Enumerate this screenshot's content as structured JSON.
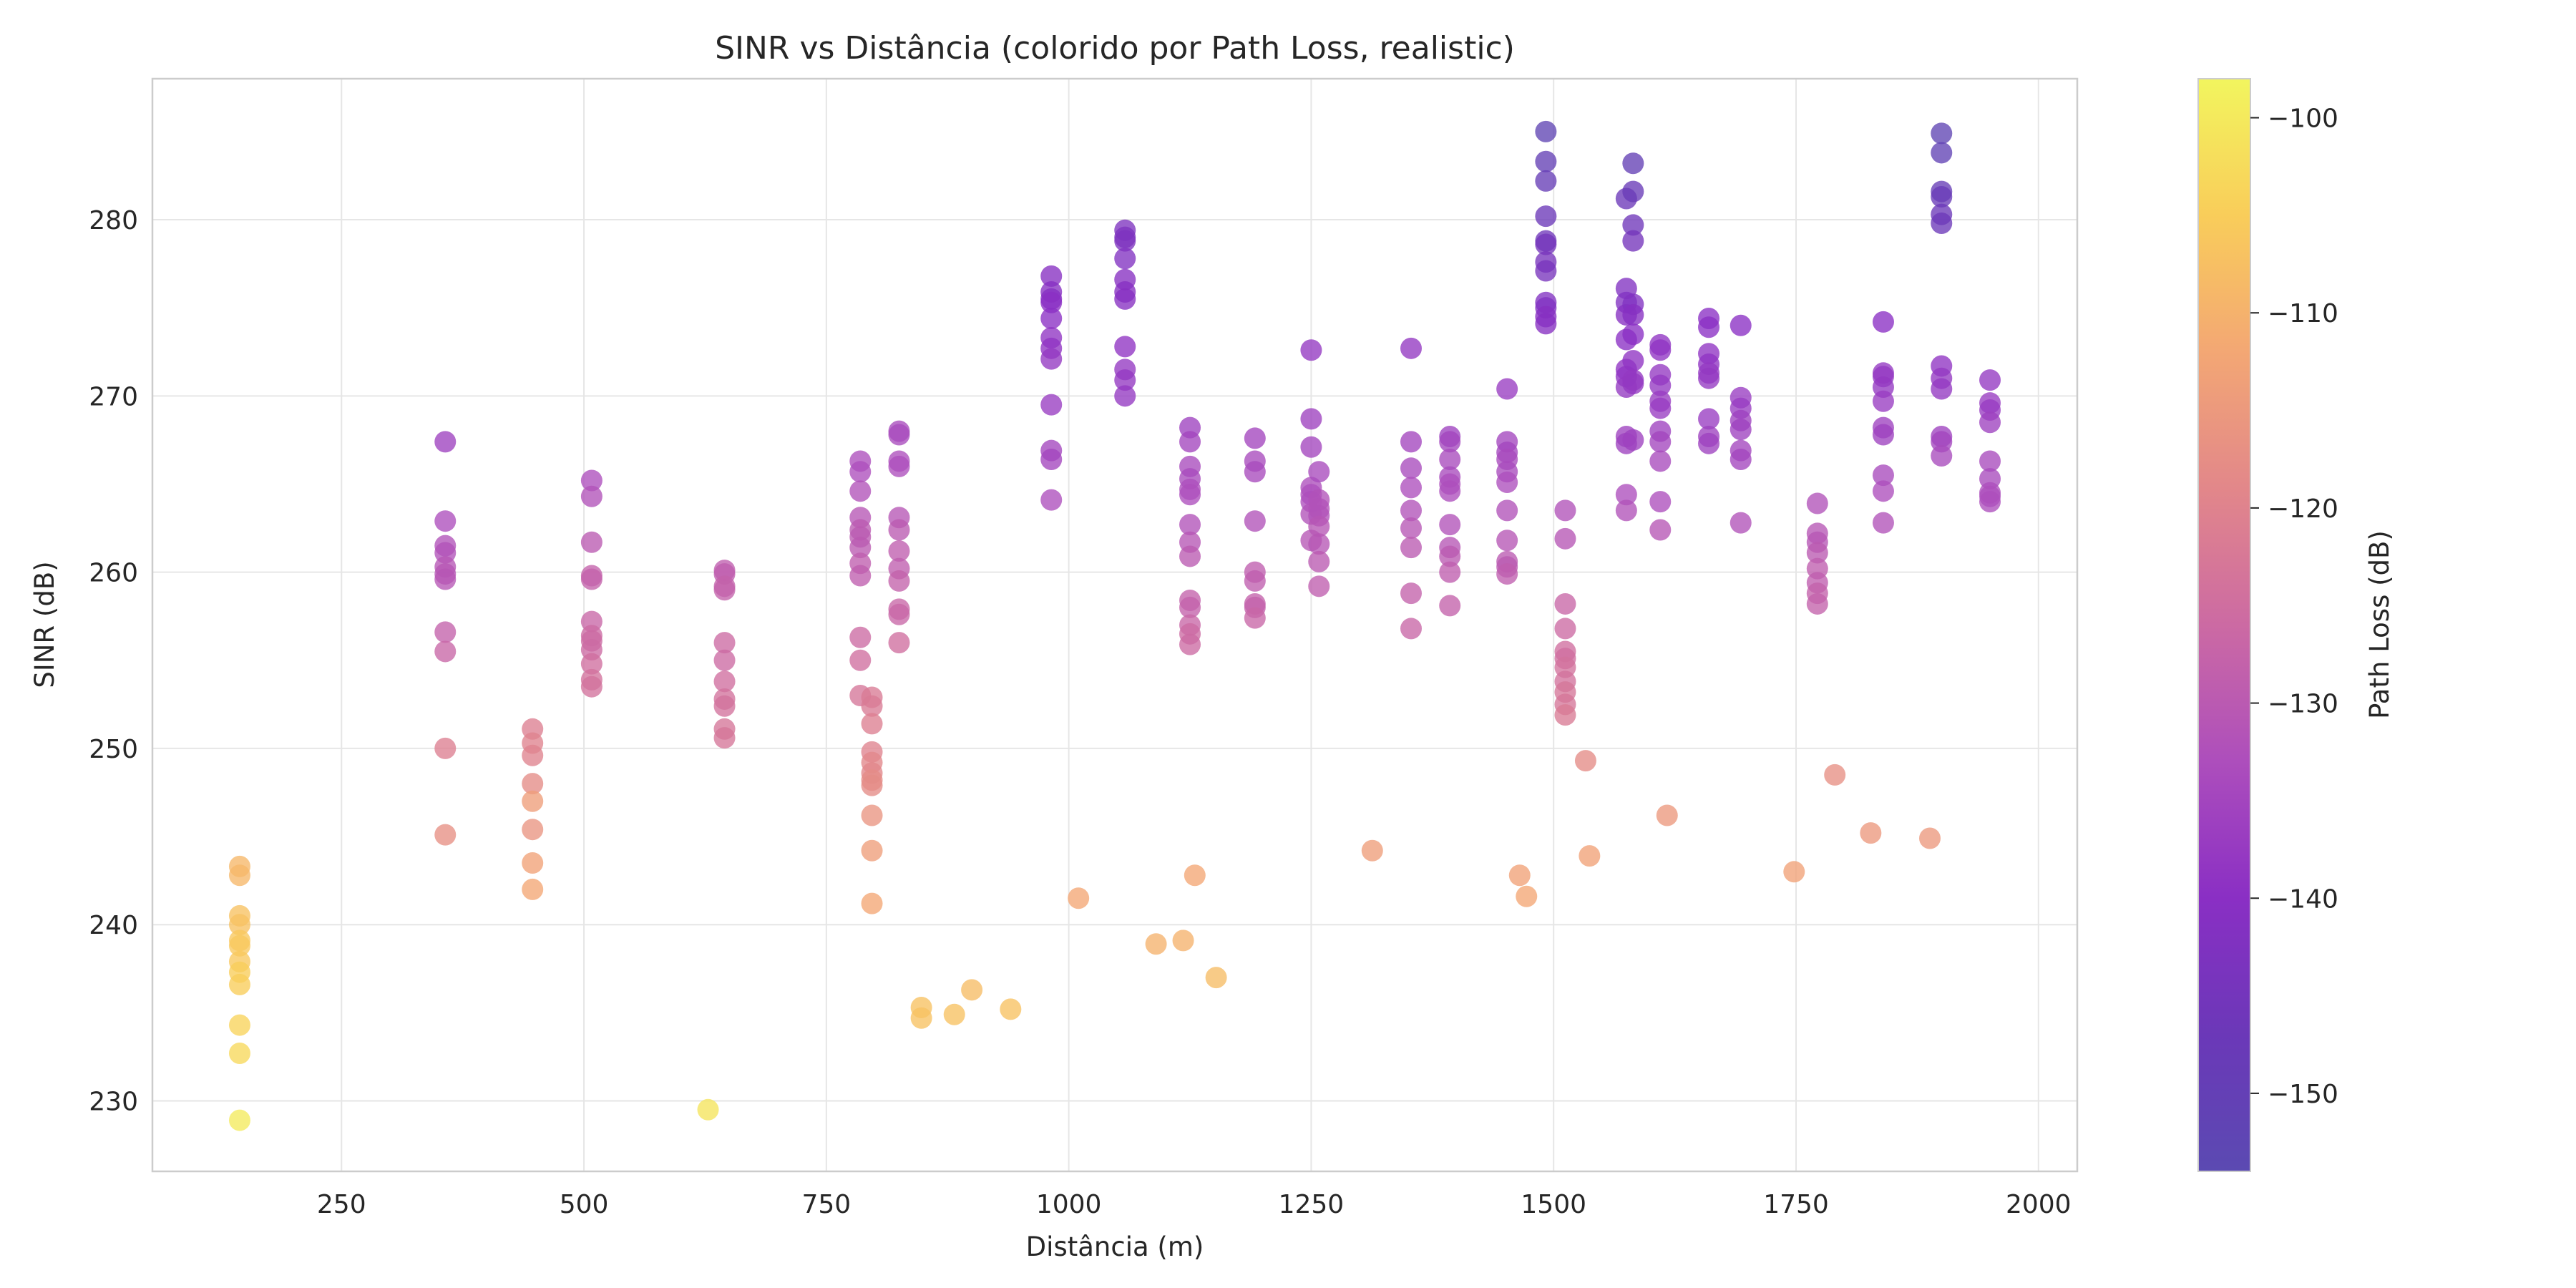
{
  "chart_data": {
    "type": "scatter",
    "title": "SINR vs Distância (colorido por Path Loss, realistic)",
    "xlabel": "Distância (m)",
    "ylabel": "SINR (dB)",
    "xlim": [
      55,
      2040
    ],
    "ylim": [
      226,
      288
    ],
    "xticks": [
      250,
      500,
      750,
      1000,
      1250,
      1500,
      1750,
      2000
    ],
    "yticks": [
      230,
      240,
      250,
      260,
      270,
      280
    ],
    "grid": true,
    "colormap": "plasma",
    "colorbar": {
      "label": "Path Loss (dB)",
      "range": [
        -154,
        -98
      ],
      "ticks": [
        -100,
        -110,
        -120,
        -130,
        -140,
        -150
      ]
    },
    "points": [
      [
        145,
        243.3,
        -109
      ],
      [
        145,
        242.8,
        -109
      ],
      [
        145,
        240.5,
        -107
      ],
      [
        145,
        240.0,
        -107
      ],
      [
        145,
        239.1,
        -106
      ],
      [
        145,
        238.8,
        -106
      ],
      [
        145,
        237.9,
        -106
      ],
      [
        145,
        237.3,
        -105
      ],
      [
        145,
        236.6,
        -105
      ],
      [
        145,
        234.3,
        -104
      ],
      [
        145,
        232.7,
        -103
      ],
      [
        145,
        228.9,
        -100
      ],
      [
        357,
        267.4,
        -136
      ],
      [
        357,
        262.9,
        -133
      ],
      [
        357,
        261.5,
        -132
      ],
      [
        357,
        261.1,
        -132
      ],
      [
        357,
        260.3,
        -131
      ],
      [
        357,
        259.9,
        -131
      ],
      [
        357,
        259.6,
        -131
      ],
      [
        357,
        256.6,
        -128
      ],
      [
        357,
        255.5,
        -127
      ],
      [
        357,
        250.0,
        -121
      ],
      [
        357,
        245.1,
        -117
      ],
      [
        447,
        251.1,
        -121
      ],
      [
        447,
        250.3,
        -120
      ],
      [
        447,
        249.6,
        -120
      ],
      [
        447,
        248.0,
        -118
      ],
      [
        447,
        247.0,
        -114
      ],
      [
        447,
        245.4,
        -116
      ],
      [
        447,
        243.5,
        -113
      ],
      [
        447,
        242.0,
        -112
      ],
      [
        508,
        265.2,
        -133
      ],
      [
        508,
        264.3,
        -132
      ],
      [
        508,
        261.7,
        -130
      ],
      [
        508,
        259.8,
        -128
      ],
      [
        508,
        259.6,
        -128
      ],
      [
        508,
        257.2,
        -127
      ],
      [
        508,
        256.4,
        -126
      ],
      [
        508,
        256.1,
        -126
      ],
      [
        508,
        255.6,
        -126
      ],
      [
        508,
        254.8,
        -125
      ],
      [
        508,
        253.9,
        -124
      ],
      [
        508,
        253.5,
        -124
      ],
      [
        628,
        229.5,
        -101
      ],
      [
        645,
        260.1,
        -129
      ],
      [
        645,
        259.9,
        -129
      ],
      [
        645,
        259.2,
        -128
      ],
      [
        645,
        259.0,
        -128
      ],
      [
        645,
        256.0,
        -126
      ],
      [
        645,
        255.0,
        -126
      ],
      [
        645,
        253.8,
        -125
      ],
      [
        645,
        252.8,
        -124
      ],
      [
        645,
        252.4,
        -124
      ],
      [
        645,
        251.1,
        -123
      ],
      [
        645,
        250.6,
        -123
      ],
      [
        785,
        266.3,
        -133
      ],
      [
        785,
        265.7,
        -133
      ],
      [
        785,
        264.6,
        -132
      ],
      [
        785,
        263.1,
        -131
      ],
      [
        785,
        262.4,
        -130
      ],
      [
        785,
        262.0,
        -130
      ],
      [
        785,
        261.4,
        -130
      ],
      [
        785,
        260.5,
        -129
      ],
      [
        785,
        259.8,
        -129
      ],
      [
        785,
        256.3,
        -126
      ],
      [
        785,
        255.0,
        -125
      ],
      [
        785,
        253.0,
        -123
      ],
      [
        797,
        252.9,
        -122
      ],
      [
        797,
        252.4,
        -122
      ],
      [
        797,
        251.4,
        -121
      ],
      [
        797,
        249.8,
        -120
      ],
      [
        797,
        249.2,
        -119
      ],
      [
        797,
        248.6,
        -119
      ],
      [
        797,
        248.2,
        -118
      ],
      [
        797,
        247.9,
        -118
      ],
      [
        797,
        246.2,
        -116
      ],
      [
        797,
        244.2,
        -114
      ],
      [
        797,
        241.2,
        -112
      ],
      [
        825,
        268.0,
        -134
      ],
      [
        825,
        267.8,
        -134
      ],
      [
        825,
        266.3,
        -133
      ],
      [
        825,
        266.0,
        -133
      ],
      [
        825,
        263.1,
        -131
      ],
      [
        825,
        262.4,
        -130
      ],
      [
        825,
        261.2,
        -129
      ],
      [
        825,
        260.2,
        -129
      ],
      [
        825,
        259.5,
        -128
      ],
      [
        825,
        257.9,
        -127
      ],
      [
        825,
        257.6,
        -127
      ],
      [
        825,
        256.0,
        -125
      ],
      [
        848,
        235.3,
        -107
      ],
      [
        848,
        234.7,
        -107
      ],
      [
        882,
        234.9,
        -107
      ],
      [
        900,
        236.3,
        -108
      ],
      [
        940,
        235.2,
        -107
      ],
      [
        982,
        276.8,
        -141
      ],
      [
        982,
        275.9,
        -141
      ],
      [
        982,
        275.5,
        -141
      ],
      [
        982,
        275.3,
        -140
      ],
      [
        982,
        274.4,
        -140
      ],
      [
        982,
        273.3,
        -139
      ],
      [
        982,
        272.7,
        -139
      ],
      [
        982,
        272.1,
        -138
      ],
      [
        982,
        269.5,
        -137
      ],
      [
        982,
        266.9,
        -135
      ],
      [
        982,
        266.4,
        -135
      ],
      [
        982,
        264.1,
        -133
      ],
      [
        1010,
        241.5,
        -112
      ],
      [
        1058,
        279.4,
        -143
      ],
      [
        1058,
        279.0,
        -143
      ],
      [
        1058,
        278.8,
        -143
      ],
      [
        1058,
        277.8,
        -142
      ],
      [
        1058,
        276.6,
        -141
      ],
      [
        1058,
        275.9,
        -141
      ],
      [
        1058,
        275.5,
        -141
      ],
      [
        1058,
        272.8,
        -139
      ],
      [
        1058,
        271.5,
        -138
      ],
      [
        1058,
        270.9,
        -138
      ],
      [
        1058,
        270.0,
        -138
      ],
      [
        1090,
        238.9,
        -110
      ],
      [
        1118,
        239.1,
        -110
      ],
      [
        1130,
        242.8,
        -112
      ],
      [
        1152,
        237.0,
        -108
      ],
      [
        1125,
        268.2,
        -136
      ],
      [
        1125,
        267.4,
        -135
      ],
      [
        1125,
        266.0,
        -134
      ],
      [
        1125,
        265.3,
        -134
      ],
      [
        1125,
        264.7,
        -133
      ],
      [
        1125,
        264.4,
        -133
      ],
      [
        1125,
        262.7,
        -132
      ],
      [
        1125,
        261.7,
        -131
      ],
      [
        1125,
        260.9,
        -130
      ],
      [
        1125,
        258.4,
        -128
      ],
      [
        1125,
        258.0,
        -128
      ],
      [
        1125,
        257.0,
        -127
      ],
      [
        1125,
        256.5,
        -126
      ],
      [
        1125,
        255.9,
        -126
      ],
      [
        1192,
        267.6,
        -135
      ],
      [
        1192,
        266.3,
        -134
      ],
      [
        1192,
        265.7,
        -134
      ],
      [
        1192,
        262.9,
        -132
      ],
      [
        1192,
        260.0,
        -129
      ],
      [
        1192,
        259.5,
        -129
      ],
      [
        1192,
        258.2,
        -128
      ],
      [
        1192,
        258.0,
        -128
      ],
      [
        1192,
        257.4,
        -127
      ],
      [
        1250,
        272.6,
        -138
      ],
      [
        1250,
        268.7,
        -136
      ],
      [
        1250,
        267.1,
        -135
      ],
      [
        1250,
        264.8,
        -133
      ],
      [
        1250,
        264.4,
        -133
      ],
      [
        1250,
        264.0,
        -133
      ],
      [
        1250,
        263.3,
        -132
      ],
      [
        1250,
        261.8,
        -131
      ],
      [
        1258,
        265.7,
        -134
      ],
      [
        1258,
        264.1,
        -132
      ],
      [
        1258,
        263.6,
        -132
      ],
      [
        1258,
        263.2,
        -132
      ],
      [
        1258,
        262.6,
        -131
      ],
      [
        1258,
        261.6,
        -131
      ],
      [
        1258,
        260.6,
        -130
      ],
      [
        1258,
        259.2,
        -129
      ],
      [
        1313,
        244.2,
        -114
      ],
      [
        1353,
        272.7,
        -138
      ],
      [
        1353,
        267.4,
        -135
      ],
      [
        1353,
        265.9,
        -134
      ],
      [
        1353,
        264.8,
        -133
      ],
      [
        1353,
        263.5,
        -132
      ],
      [
        1353,
        262.5,
        -131
      ],
      [
        1353,
        261.4,
        -130
      ],
      [
        1353,
        258.8,
        -128
      ],
      [
        1353,
        256.8,
        -127
      ],
      [
        1393,
        267.7,
        -136
      ],
      [
        1393,
        267.4,
        -135
      ],
      [
        1393,
        266.4,
        -134
      ],
      [
        1393,
        265.4,
        -134
      ],
      [
        1393,
        265.0,
        -133
      ],
      [
        1393,
        264.6,
        -133
      ],
      [
        1393,
        262.7,
        -132
      ],
      [
        1393,
        261.4,
        -131
      ],
      [
        1393,
        260.9,
        -130
      ],
      [
        1393,
        260.0,
        -129
      ],
      [
        1393,
        258.1,
        -128
      ],
      [
        1452,
        270.4,
        -137
      ],
      [
        1452,
        267.4,
        -135
      ],
      [
        1452,
        266.8,
        -135
      ],
      [
        1452,
        266.4,
        -134
      ],
      [
        1452,
        265.7,
        -134
      ],
      [
        1452,
        265.1,
        -133
      ],
      [
        1452,
        263.5,
        -132
      ],
      [
        1452,
        261.8,
        -131
      ],
      [
        1452,
        260.6,
        -130
      ],
      [
        1452,
        260.3,
        -130
      ],
      [
        1452,
        259.9,
        -129
      ],
      [
        1465,
        242.8,
        -113
      ],
      [
        1472,
        241.6,
        -112
      ],
      [
        1492,
        285.0,
        -152
      ],
      [
        1492,
        283.3,
        -150
      ],
      [
        1492,
        282.2,
        -149
      ],
      [
        1492,
        280.2,
        -147
      ],
      [
        1492,
        278.8,
        -146
      ],
      [
        1492,
        278.6,
        -145
      ],
      [
        1492,
        277.6,
        -144
      ],
      [
        1492,
        277.1,
        -144
      ],
      [
        1492,
        275.3,
        -142
      ],
      [
        1492,
        275.0,
        -142
      ],
      [
        1492,
        274.5,
        -141
      ],
      [
        1492,
        274.1,
        -141
      ],
      [
        1512,
        263.5,
        -132
      ],
      [
        1512,
        261.9,
        -131
      ],
      [
        1512,
        258.2,
        -127
      ],
      [
        1512,
        256.8,
        -126
      ],
      [
        1512,
        255.5,
        -125
      ],
      [
        1512,
        255.1,
        -125
      ],
      [
        1512,
        254.6,
        -124
      ],
      [
        1512,
        253.8,
        -124
      ],
      [
        1512,
        253.2,
        -123
      ],
      [
        1512,
        252.5,
        -123
      ],
      [
        1512,
        251.9,
        -122
      ],
      [
        1533,
        249.3,
        -118
      ],
      [
        1537,
        243.9,
        -113
      ],
      [
        1575,
        281.2,
        -147
      ],
      [
        1575,
        276.1,
        -142
      ],
      [
        1575,
        275.3,
        -142
      ],
      [
        1575,
        274.6,
        -141
      ],
      [
        1575,
        273.2,
        -140
      ],
      [
        1575,
        271.5,
        -139
      ],
      [
        1575,
        271.1,
        -139
      ],
      [
        1575,
        270.5,
        -138
      ],
      [
        1575,
        267.7,
        -136
      ],
      [
        1575,
        267.3,
        -136
      ],
      [
        1575,
        264.4,
        -133
      ],
      [
        1575,
        263.5,
        -132
      ],
      [
        1582,
        283.2,
        -150
      ],
      [
        1582,
        281.6,
        -148
      ],
      [
        1582,
        279.7,
        -146
      ],
      [
        1582,
        278.8,
        -145
      ],
      [
        1582,
        275.2,
        -142
      ],
      [
        1582,
        274.6,
        -141
      ],
      [
        1582,
        273.5,
        -140
      ],
      [
        1582,
        272.0,
        -139
      ],
      [
        1582,
        270.9,
        -138
      ],
      [
        1582,
        270.7,
        -138
      ],
      [
        1582,
        267.5,
        -136
      ],
      [
        1610,
        272.9,
        -139
      ],
      [
        1610,
        272.6,
        -139
      ],
      [
        1610,
        271.2,
        -138
      ],
      [
        1610,
        270.6,
        -138
      ],
      [
        1610,
        269.7,
        -137
      ],
      [
        1610,
        269.3,
        -137
      ],
      [
        1610,
        268.0,
        -136
      ],
      [
        1610,
        267.4,
        -135
      ],
      [
        1610,
        266.3,
        -134
      ],
      [
        1610,
        264.0,
        -133
      ],
      [
        1610,
        262.4,
        -131
      ],
      [
        1617,
        246.2,
        -115
      ],
      [
        1660,
        274.4,
        -140
      ],
      [
        1660,
        273.9,
        -140
      ],
      [
        1660,
        272.4,
        -139
      ],
      [
        1660,
        271.8,
        -139
      ],
      [
        1660,
        271.3,
        -138
      ],
      [
        1660,
        271.0,
        -138
      ],
      [
        1660,
        268.7,
        -137
      ],
      [
        1660,
        267.7,
        -136
      ],
      [
        1660,
        267.3,
        -136
      ],
      [
        1693,
        274.0,
        -140
      ],
      [
        1693,
        269.9,
        -137
      ],
      [
        1693,
        269.3,
        -137
      ],
      [
        1693,
        268.6,
        -136
      ],
      [
        1693,
        268.1,
        -136
      ],
      [
        1693,
        266.9,
        -135
      ],
      [
        1693,
        266.4,
        -135
      ],
      [
        1693,
        262.8,
        -132
      ],
      [
        1748,
        243.0,
        -113
      ],
      [
        1772,
        263.9,
        -132
      ],
      [
        1772,
        262.2,
        -131
      ],
      [
        1772,
        261.7,
        -131
      ],
      [
        1772,
        261.1,
        -130
      ],
      [
        1772,
        260.2,
        -129
      ],
      [
        1772,
        259.4,
        -129
      ],
      [
        1772,
        258.8,
        -128
      ],
      [
        1772,
        258.2,
        -128
      ],
      [
        1790,
        248.5,
        -117
      ],
      [
        1827,
        245.2,
        -115
      ],
      [
        1888,
        244.9,
        -115
      ],
      [
        1840,
        274.2,
        -140
      ],
      [
        1840,
        271.3,
        -138
      ],
      [
        1840,
        271.1,
        -138
      ],
      [
        1840,
        270.5,
        -138
      ],
      [
        1840,
        269.7,
        -137
      ],
      [
        1840,
        268.2,
        -136
      ],
      [
        1840,
        267.8,
        -136
      ],
      [
        1840,
        265.5,
        -134
      ],
      [
        1840,
        264.6,
        -133
      ],
      [
        1840,
        262.8,
        -132
      ],
      [
        1900,
        284.9,
        -152
      ],
      [
        1900,
        283.8,
        -151
      ],
      [
        1900,
        281.6,
        -149
      ],
      [
        1900,
        281.3,
        -148
      ],
      [
        1900,
        280.3,
        -147
      ],
      [
        1900,
        279.8,
        -147
      ],
      [
        1900,
        271.7,
        -139
      ],
      [
        1900,
        271.0,
        -138
      ],
      [
        1900,
        270.4,
        -138
      ],
      [
        1900,
        267.7,
        -136
      ],
      [
        1900,
        267.4,
        -135
      ],
      [
        1900,
        266.6,
        -134
      ],
      [
        1950,
        270.9,
        -138
      ],
      [
        1950,
        269.6,
        -137
      ],
      [
        1950,
        269.2,
        -137
      ],
      [
        1950,
        268.5,
        -136
      ],
      [
        1950,
        266.3,
        -134
      ],
      [
        1950,
        265.3,
        -134
      ],
      [
        1950,
        264.5,
        -133
      ],
      [
        1950,
        264.3,
        -133
      ],
      [
        1950,
        264.0,
        -133
      ]
    ]
  }
}
